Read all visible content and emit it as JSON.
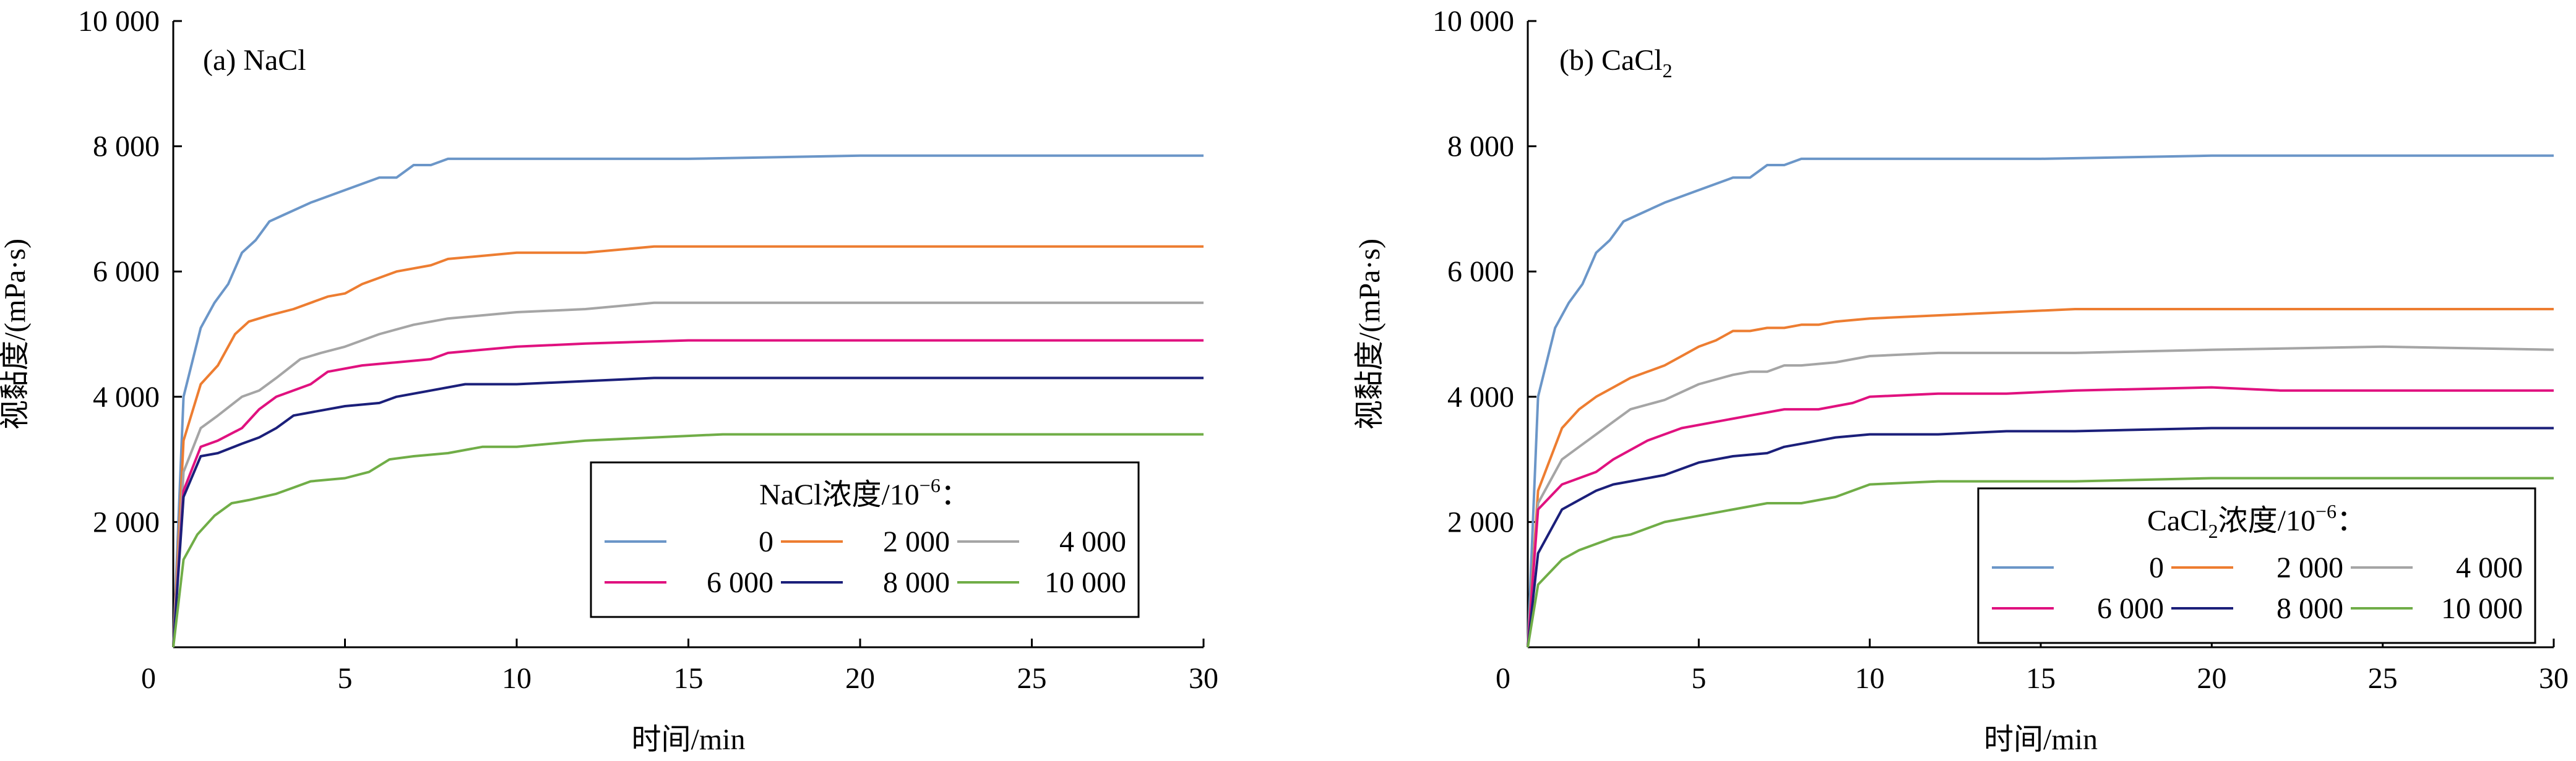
{
  "chart_data": [
    {
      "type": "line",
      "panel_label": "(a) NaCl",
      "xlabel": "时间/min",
      "ylabel": "视黏度/(mPa·s)",
      "xlim": [
        0,
        30
      ],
      "ylim": [
        0,
        10000
      ],
      "xticks": [
        0,
        5,
        10,
        15,
        20,
        25,
        30
      ],
      "xtick_labels": [
        "0",
        "5",
        "10",
        "15",
        "20",
        "25",
        "30"
      ],
      "yticks": [
        2000,
        4000,
        6000,
        8000,
        10000
      ],
      "ytick_labels": [
        "2 000",
        "4 000",
        "6 000",
        "8 000",
        "10 000"
      ],
      "grid": false,
      "legend": {
        "title_main": "NaCl浓度/10",
        "title_sup": "−6",
        "title_end": "：",
        "position": "center-right",
        "columns": 3
      },
      "series": [
        {
          "name": "0",
          "color": "#6b96c8",
          "x": [
            0,
            0.3,
            0.8,
            1.2,
            1.6,
            2,
            2.4,
            2.8,
            3.2,
            4,
            5,
            6,
            6.5,
            7,
            7.5,
            8,
            8.5,
            10,
            12,
            15,
            20,
            25,
            30
          ],
          "y": [
            0,
            4000,
            5100,
            5500,
            5800,
            6300,
            6500,
            6800,
            6900,
            7100,
            7300,
            7500,
            7500,
            7700,
            7700,
            7800,
            7800,
            7800,
            7800,
            7800,
            7850,
            7850,
            7850
          ]
        },
        {
          "name": "2 000",
          "color": "#ed7d31",
          "x": [
            0,
            0.3,
            0.8,
            1.3,
            1.8,
            2.2,
            2.8,
            3.5,
            4.5,
            5,
            5.5,
            6.5,
            7.5,
            8,
            9,
            10,
            12,
            14,
            20,
            30
          ],
          "y": [
            0,
            3300,
            4200,
            4500,
            5000,
            5200,
            5300,
            5400,
            5600,
            5650,
            5800,
            6000,
            6100,
            6200,
            6250,
            6300,
            6300,
            6400,
            6400,
            6400
          ]
        },
        {
          "name": "4 000",
          "color": "#a5a5a5",
          "x": [
            0,
            0.3,
            0.8,
            1.3,
            2,
            2.5,
            3,
            3.7,
            4.3,
            5,
            6,
            7,
            8,
            9,
            10,
            12,
            14,
            20,
            30
          ],
          "y": [
            0,
            2800,
            3500,
            3700,
            4000,
            4100,
            4300,
            4600,
            4700,
            4800,
            5000,
            5150,
            5250,
            5300,
            5350,
            5400,
            5500,
            5500,
            5500
          ]
        },
        {
          "name": "6 000",
          "color": "#e0117f",
          "x": [
            0,
            0.3,
            0.8,
            1.3,
            2,
            2.5,
            3,
            4,
            4.5,
            5.5,
            6.5,
            7.5,
            8,
            9,
            10,
            12,
            15,
            20,
            30
          ],
          "y": [
            0,
            2500,
            3200,
            3300,
            3500,
            3800,
            4000,
            4200,
            4400,
            4500,
            4550,
            4600,
            4700,
            4750,
            4800,
            4850,
            4900,
            4900,
            4900
          ]
        },
        {
          "name": "8 000",
          "color": "#1b1f7a",
          "x": [
            0,
            0.3,
            0.8,
            1.3,
            2,
            2.5,
            3,
            3.5,
            4,
            5,
            6,
            6.5,
            7.5,
            8.5,
            10,
            12,
            14,
            20,
            30
          ],
          "y": [
            0,
            2400,
            3050,
            3100,
            3250,
            3350,
            3500,
            3700,
            3750,
            3850,
            3900,
            4000,
            4100,
            4200,
            4200,
            4250,
            4300,
            4300,
            4300
          ]
        },
        {
          "name": "10 000",
          "color": "#70ad47",
          "x": [
            0,
            0.3,
            0.7,
            1.2,
            1.7,
            2.2,
            3,
            3.5,
            4,
            5,
            5.7,
            6.3,
            7,
            8,
            9,
            10,
            12,
            14,
            16,
            20,
            30
          ],
          "y": [
            0,
            1400,
            1800,
            2100,
            2300,
            2350,
            2450,
            2550,
            2650,
            2700,
            2800,
            3000,
            3050,
            3100,
            3200,
            3200,
            3300,
            3350,
            3400,
            3400,
            3400
          ]
        }
      ]
    },
    {
      "type": "line",
      "panel_label": "(b) CaCl",
      "panel_label_sub": "2",
      "xlabel": "时间/min",
      "ylabel": "视黏度/(mPa·s)",
      "xlim": [
        0,
        30
      ],
      "ylim": [
        0,
        10000
      ],
      "xticks": [
        0,
        5,
        10,
        15,
        20,
        25,
        30
      ],
      "xtick_labels": [
        "0",
        "5",
        "10",
        "15",
        "20",
        "25",
        "30"
      ],
      "yticks": [
        2000,
        4000,
        6000,
        8000,
        10000
      ],
      "ytick_labels": [
        "2 000",
        "4 000",
        "6 000",
        "8 000",
        "10 000"
      ],
      "grid": false,
      "legend": {
        "title_main": "CaCl",
        "title_sub": "2",
        "title_rest": "浓度/10",
        "title_sup": "−6",
        "title_end": "：",
        "position": "bottom-right",
        "columns": 3
      },
      "series": [
        {
          "name": "0",
          "color": "#6b96c8",
          "x": [
            0,
            0.3,
            0.8,
            1.2,
            1.6,
            2,
            2.4,
            2.8,
            3.2,
            4,
            5,
            6,
            6.5,
            7,
            7.5,
            8,
            8.5,
            10,
            12,
            15,
            20,
            25,
            30
          ],
          "y": [
            0,
            4000,
            5100,
            5500,
            5800,
            6300,
            6500,
            6800,
            6900,
            7100,
            7300,
            7500,
            7500,
            7700,
            7700,
            7800,
            7800,
            7800,
            7800,
            7800,
            7850,
            7850,
            7850
          ]
        },
        {
          "name": "2 000",
          "color": "#ed7d31",
          "x": [
            0,
            0.3,
            1,
            1.5,
            2,
            2.5,
            3,
            3.5,
            4,
            4.5,
            5,
            5.5,
            6,
            6.5,
            7,
            7.5,
            8,
            8.5,
            9,
            10,
            12,
            14,
            16,
            20,
            30
          ],
          "y": [
            0,
            2500,
            3500,
            3800,
            4000,
            4150,
            4300,
            4400,
            4500,
            4650,
            4800,
            4900,
            5050,
            5050,
            5100,
            5100,
            5150,
            5150,
            5200,
            5250,
            5300,
            5350,
            5400,
            5400,
            5400
          ]
        },
        {
          "name": "4 000",
          "color": "#a5a5a5",
          "x": [
            0,
            0.3,
            1,
            1.5,
            2,
            2.5,
            3,
            4,
            5,
            6,
            6.5,
            7,
            7.5,
            8,
            9,
            10,
            12,
            16,
            20,
            25,
            30
          ],
          "y": [
            0,
            2300,
            3000,
            3200,
            3400,
            3600,
            3800,
            3950,
            4200,
            4350,
            4400,
            4400,
            4500,
            4500,
            4550,
            4650,
            4700,
            4700,
            4750,
            4800,
            4750
          ]
        },
        {
          "name": "6 000",
          "color": "#e0117f",
          "x": [
            0,
            0.3,
            1,
            1.5,
            2,
            2.5,
            3.5,
            4.5,
            5.5,
            6.5,
            7.5,
            8.5,
            9.5,
            10,
            12,
            14,
            16,
            20,
            22,
            25,
            30
          ],
          "y": [
            0,
            2200,
            2600,
            2700,
            2800,
            3000,
            3300,
            3500,
            3600,
            3700,
            3800,
            3800,
            3900,
            4000,
            4050,
            4050,
            4100,
            4150,
            4100,
            4100,
            4100
          ]
        },
        {
          "name": "8 000",
          "color": "#1b1f7a",
          "x": [
            0,
            0.3,
            1,
            1.5,
            2,
            2.5,
            3,
            4,
            5,
            6,
            7,
            7.5,
            8,
            8.5,
            9,
            10,
            12,
            14,
            16,
            20,
            30
          ],
          "y": [
            0,
            1500,
            2200,
            2350,
            2500,
            2600,
            2650,
            2750,
            2950,
            3050,
            3100,
            3200,
            3250,
            3300,
            3350,
            3400,
            3400,
            3450,
            3450,
            3500,
            3500
          ]
        },
        {
          "name": "10 000",
          "color": "#70ad47",
          "x": [
            0,
            0.3,
            1,
            1.5,
            2,
            2.5,
            3,
            4,
            5,
            6,
            7,
            8,
            9,
            10,
            12,
            14,
            16,
            20,
            30
          ],
          "y": [
            0,
            1000,
            1400,
            1550,
            1650,
            1750,
            1800,
            2000,
            2100,
            2200,
            2300,
            2300,
            2400,
            2600,
            2650,
            2650,
            2650,
            2700,
            2700
          ]
        }
      ]
    }
  ]
}
